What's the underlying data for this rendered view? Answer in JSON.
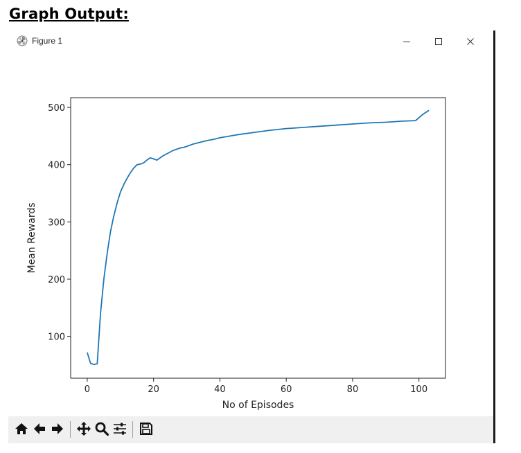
{
  "heading": "Graph Output:",
  "window": {
    "title": "Figure 1",
    "controls": {
      "minimize": "minimize-icon",
      "maximize": "maximize-icon",
      "close": "close-icon"
    }
  },
  "toolbar": {
    "buttons": [
      {
        "name": "home",
        "icon": "home-icon"
      },
      {
        "name": "back",
        "icon": "arrow-left-icon"
      },
      {
        "name": "forward",
        "icon": "arrow-right-icon"
      },
      {
        "name": "pan",
        "icon": "move-icon"
      },
      {
        "name": "zoom",
        "icon": "magnifier-icon"
      },
      {
        "name": "configure-subplots",
        "icon": "sliders-icon"
      },
      {
        "name": "save",
        "icon": "floppy-disk-icon"
      }
    ]
  },
  "colors": {
    "line": "#1f77b4",
    "toolbar_bg": "#f0f0f0"
  },
  "chart_data": {
    "type": "line",
    "title": "",
    "xlabel": "No of Episodes",
    "ylabel": "Mean Rewards",
    "xlim": [
      -5,
      108
    ],
    "ylim": [
      27,
      517
    ],
    "xticks": [
      0,
      20,
      40,
      60,
      80,
      100
    ],
    "yticks": [
      100,
      200,
      300,
      400,
      500
    ],
    "xtick_labels": [
      "0",
      "20",
      "40",
      "60",
      "80",
      "100"
    ],
    "ytick_labels": [
      "100",
      "200",
      "300",
      "400",
      "500"
    ],
    "grid": false,
    "series": [
      {
        "x": [
          0,
          1,
          2,
          3,
          4,
          5,
          6,
          7,
          8,
          9,
          10,
          11,
          12,
          13,
          14,
          15,
          16,
          17,
          18,
          19,
          20,
          21,
          22,
          23,
          24,
          25,
          26,
          27,
          28,
          29,
          30,
          32,
          34,
          36,
          38,
          40,
          45,
          50,
          55,
          60,
          65,
          70,
          75,
          80,
          85,
          90,
          95,
          99,
          101,
          103
        ],
        "y": [
          72,
          53,
          51,
          52,
          140,
          200,
          245,
          283,
          310,
          333,
          352,
          365,
          376,
          386,
          394,
          400,
          401,
          403,
          408,
          412,
          410,
          408,
          412,
          416,
          419,
          422,
          425,
          427,
          429,
          430,
          432,
          436,
          439,
          442,
          444,
          447,
          452,
          456,
          460,
          463,
          465,
          467,
          469,
          471,
          473,
          474,
          476,
          477,
          487,
          495
        ]
      }
    ]
  }
}
